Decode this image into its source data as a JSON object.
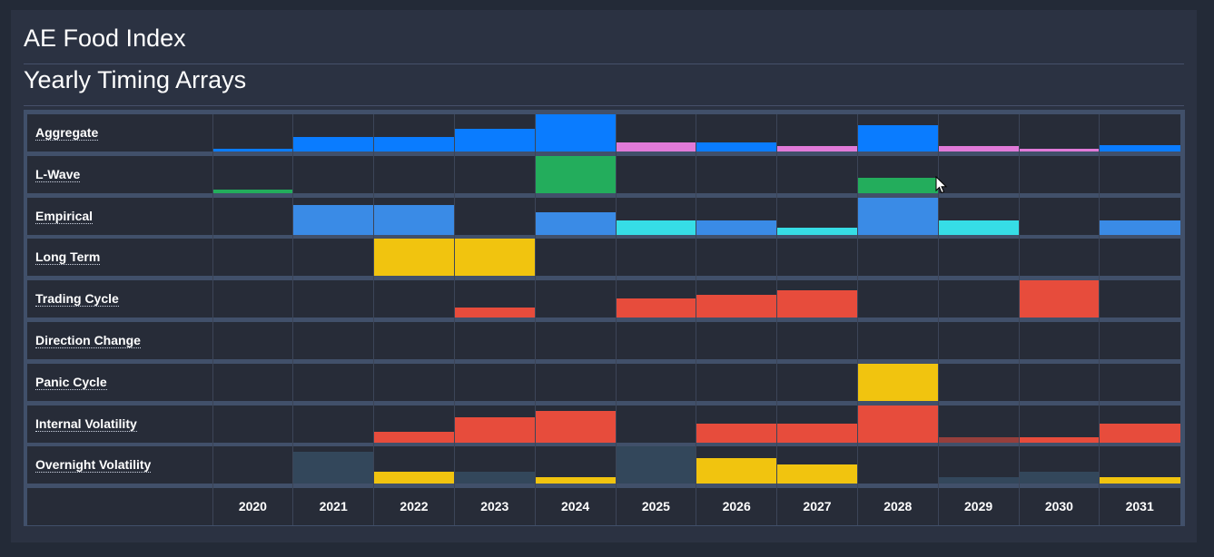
{
  "header": {
    "title": "AE Food Index",
    "subtitle": "Yearly Timing Arrays"
  },
  "chart_data": {
    "type": "heatmap",
    "title": "Yearly Timing Arrays",
    "years": [
      "2020",
      "2021",
      "2022",
      "2023",
      "2024",
      "2025",
      "2026",
      "2027",
      "2028",
      "2029",
      "2030",
      "2031"
    ],
    "rows": [
      {
        "label": "Aggregate",
        "values": [
          0.08,
          0.4,
          0.4,
          0.62,
          1.0,
          0.24,
          0.24,
          0.14,
          0.7,
          0.14,
          0.08,
          0.16
        ],
        "colors": [
          "#0a7cff",
          "#0a7cff",
          "#0a7cff",
          "#0a7cff",
          "#0a7cff",
          "#e07ad8",
          "#0a7cff",
          "#e07ad8",
          "#0a7cff",
          "#e07ad8",
          "#e07ad8",
          "#0a7cff"
        ]
      },
      {
        "label": "L-Wave",
        "values": [
          0.1,
          0,
          0,
          0,
          1.0,
          0,
          0,
          0,
          0.42,
          0,
          0,
          0
        ],
        "colors": [
          "#23ad5c",
          "#23ad5c",
          "#23ad5c",
          "#23ad5c",
          "#23ad5c",
          "#23ad5c",
          "#23ad5c",
          "#23ad5c",
          "#23ad5c",
          "#23ad5c",
          "#23ad5c",
          "#23ad5c"
        ]
      },
      {
        "label": "Empirical",
        "values": [
          0,
          0.8,
          0.8,
          0,
          0.6,
          0.38,
          0.4,
          0.2,
          1.0,
          0.4,
          0,
          0.4
        ],
        "colors": [
          "#3a8be6",
          "#3a8be6",
          "#3a8be6",
          "#3a8be6",
          "#3a8be6",
          "#36dde6",
          "#3a8be6",
          "#36dde6",
          "#3a8be6",
          "#36dde6",
          "#3a8be6",
          "#3a8be6"
        ]
      },
      {
        "label": "Long Term",
        "values": [
          0,
          0,
          1.0,
          1.0,
          0,
          0,
          0,
          0,
          0,
          0,
          0,
          0
        ],
        "colors": [
          "#f1c40f",
          "#f1c40f",
          "#f1c40f",
          "#f1c40f",
          "#f1c40f",
          "#f1c40f",
          "#f1c40f",
          "#f1c40f",
          "#f1c40f",
          "#f1c40f",
          "#f1c40f",
          "#f1c40f"
        ]
      },
      {
        "label": "Trading Cycle",
        "values": [
          0,
          0,
          0,
          0.28,
          0,
          0.5,
          0.6,
          0.72,
          0,
          0,
          1.0,
          0
        ],
        "colors": [
          "#e74c3c",
          "#e74c3c",
          "#e74c3c",
          "#e74c3c",
          "#e74c3c",
          "#e74c3c",
          "#e74c3c",
          "#e74c3c",
          "#e74c3c",
          "#e74c3c",
          "#e74c3c",
          "#e74c3c"
        ]
      },
      {
        "label": "Direction Change",
        "values": [
          0,
          0,
          0,
          0,
          0,
          0,
          0,
          0,
          0,
          0,
          0,
          0
        ],
        "colors": [
          "#e74c3c",
          "#e74c3c",
          "#e74c3c",
          "#e74c3c",
          "#e74c3c",
          "#e74c3c",
          "#e74c3c",
          "#e74c3c",
          "#e74c3c",
          "#e74c3c",
          "#e74c3c",
          "#e74c3c"
        ]
      },
      {
        "label": "Panic Cycle",
        "values": [
          0,
          0,
          0,
          0,
          0,
          0,
          0,
          0,
          1.0,
          0,
          0,
          0
        ],
        "colors": [
          "#f1c40f",
          "#f1c40f",
          "#f1c40f",
          "#f1c40f",
          "#f1c40f",
          "#f1c40f",
          "#f1c40f",
          "#f1c40f",
          "#f1c40f",
          "#f1c40f",
          "#f1c40f",
          "#f1c40f"
        ]
      },
      {
        "label": "Internal Volatility",
        "values": [
          0,
          0,
          0.3,
          0.68,
          0.85,
          0,
          0.5,
          0.5,
          1.0,
          0.15,
          0.15,
          0.5
        ],
        "colors": [
          "#e74c3c",
          "#e74c3c",
          "#e74c3c",
          "#e74c3c",
          "#e74c3c",
          "#e74c3c",
          "#e74c3c",
          "#e74c3c",
          "#e74c3c",
          "#963f3c",
          "#e74c3c",
          "#e74c3c"
        ]
      },
      {
        "label": "Overnight Volatility",
        "values": [
          0,
          0.85,
          0.32,
          0.32,
          0.17,
          1.0,
          0.68,
          0.5,
          0,
          0.17,
          0.32,
          0.17
        ],
        "colors": [
          "#f1c40f",
          "#33475b",
          "#f1c40f",
          "#33475b",
          "#f1c40f",
          "#33475b",
          "#f1c40f",
          "#f1c40f",
          "#f1c40f",
          "#33475b",
          "#33475b",
          "#f1c40f"
        ]
      }
    ],
    "value_scale": "relative intensity 0-1"
  }
}
